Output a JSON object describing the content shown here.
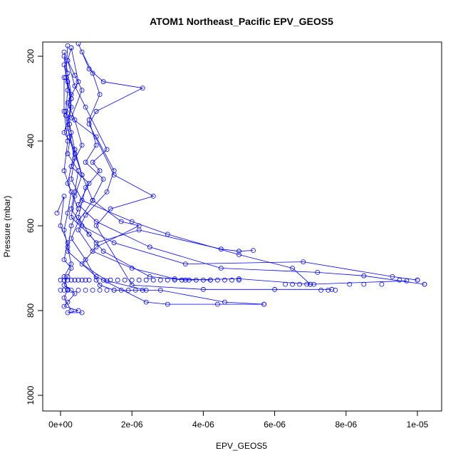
{
  "chart_data": {
    "type": "line",
    "title": "ATOM1 Northeast_Pacific EPV_GEOS5",
    "xlabel": "EPV_GEOS5",
    "ylabel": "Pressure (mbar)",
    "xlim": [
      -1e-07,
      1.06e-05
    ],
    "ylim": [
      1030,
      160
    ],
    "y_reversed": true,
    "x_ticks": [
      {
        "value": 0,
        "label": "0e+00"
      },
      {
        "value": 2e-06,
        "label": "2e-06"
      },
      {
        "value": 4e-06,
        "label": "4e-06"
      },
      {
        "value": 6e-06,
        "label": "6e-06"
      },
      {
        "value": 8e-06,
        "label": "8e-06"
      },
      {
        "value": 1e-05,
        "label": "1e-05"
      }
    ],
    "y_ticks": [
      {
        "value": 200,
        "label": "200"
      },
      {
        "value": 400,
        "label": "400"
      },
      {
        "value": 600,
        "label": "600"
      },
      {
        "value": 800,
        "label": "800"
      },
      {
        "value": 1000,
        "label": "1000"
      }
    ],
    "grid": false,
    "legend": "none",
    "series_color": "#0000ff",
    "marker": "open-circle",
    "series": [
      {
        "x": [
          2e-07,
          1.5e-07,
          3e-07,
          2.5e-07,
          4e-07,
          6e-07,
          4e-07,
          3e-07,
          8e-07,
          1e-06,
          2.2e-06,
          4.5e-06,
          5e-06,
          5.4e-06
        ],
        "y": [
          175,
          250,
          300,
          360,
          420,
          480,
          530,
          580,
          620,
          640,
          610,
          655,
          660,
          658
        ]
      },
      {
        "x": [
          1e-07,
          2e-07,
          1.5e-07,
          3e-07,
          2e-07,
          5e-07,
          4e-07,
          3e-07,
          6e-07,
          1.5e-06,
          3.5e-06,
          6.8e-06,
          9.3e-06,
          1e-05
        ],
        "y": [
          200,
          280,
          330,
          380,
          430,
          470,
          520,
          560,
          600,
          640,
          690,
          685,
          720,
          728
        ]
      },
      {
        "x": [
          3e-07,
          5e-07,
          2e-07,
          4e-07,
          6e-07,
          3e-07,
          8e-07,
          5e-07,
          1e-06,
          2.5e-06,
          4.5e-06,
          7.2e-06,
          8.5e-06,
          1.02e-05
        ],
        "y": [
          180,
          260,
          310,
          350,
          410,
          460,
          500,
          550,
          590,
          650,
          700,
          710,
          718,
          738
        ]
      },
      {
        "x": [
          1e-07,
          2e-07,
          3e-07,
          1.5e-07,
          2.5e-07,
          4e-07,
          3e-07,
          6e-07,
          2e-06,
          3e-06,
          5e-06,
          6.5e-06,
          7e-06,
          9.7e-06
        ],
        "y": [
          190,
          240,
          290,
          340,
          390,
          440,
          490,
          540,
          590,
          620,
          668,
          700,
          738,
          730
        ]
      },
      {
        "x": [
          5e-07,
          8e-07,
          1.2e-06,
          2.3e-06,
          1e-06,
          8e-07,
          1.5e-06,
          2.6e-06,
          1.4e-06,
          1e-06,
          2e-06,
          4e-06,
          6e-06,
          7.6e-06
        ],
        "y": [
          170,
          230,
          260,
          275,
          330,
          360,
          480,
          530,
          560,
          600,
          740,
          750,
          750,
          750
        ]
      },
      {
        "x": [
          2e-07,
          4e-07,
          7e-07,
          1.3e-06,
          9e-07,
          1.1e-06,
          7e-07,
          5e-07,
          8e-07,
          1.2e-06,
          2.5e-06,
          3.5e-06,
          5e-06,
          7e-06
        ],
        "y": [
          210,
          270,
          320,
          420,
          450,
          470,
          510,
          580,
          620,
          660,
          720,
          728,
          725,
          738
        ]
      },
      {
        "x": [
          1e-07,
          3e-07,
          2e-07,
          4e-07,
          6e-07,
          9e-07,
          5e-07,
          3e-07,
          7e-07,
          1.1e-06,
          1.5e-06,
          2.8e-06,
          4.6e-06,
          5.7e-06
        ],
        "y": [
          220,
          300,
          370,
          430,
          480,
          540,
          590,
          630,
          680,
          740,
          752,
          752,
          780,
          785
        ]
      },
      {
        "x": [
          -1e-07,
          1e-07,
          0.0,
          2e-07,
          1e-07,
          3e-07,
          2e-07,
          1e-07,
          4e-07,
          2e-07,
          1e-07,
          5e-07,
          2e-07,
          6e-07
        ],
        "y": [
          570,
          530,
          600,
          640,
          680,
          700,
          720,
          740,
          760,
          780,
          790,
          800,
          805,
          805
        ]
      },
      {
        "x": [
          2e-07,
          3e-07,
          1e-07,
          4e-07,
          2e-07,
          5e-07,
          3e-07,
          2e-07,
          1e-06,
          2.4e-06,
          3e-06,
          4.4e-06,
          5.7e-06
        ],
        "y": [
          260,
          320,
          380,
          420,
          500,
          560,
          600,
          660,
          720,
          780,
          785,
          785,
          785
        ]
      },
      {
        "x": [
          3e-07,
          2e-07,
          4e-07,
          6e-07,
          3e-07,
          1e-06,
          1.5e-06,
          1.3e-06,
          7e-07,
          5e-07,
          9e-07,
          2e-06,
          3.2e-06,
          4.2e-06
        ],
        "y": [
          180,
          210,
          245,
          280,
          345,
          390,
          470,
          520,
          575,
          610,
          660,
          700,
          725,
          728
        ]
      },
      {
        "x": [
          1e-07,
          1e-07,
          2e-07,
          1e-07,
          3e-07,
          2e-07,
          1e-07,
          2e-07,
          3e-07,
          1e-07,
          2e-07,
          1e-07,
          3e-07
        ],
        "y": [
          250,
          330,
          400,
          470,
          520,
          570,
          610,
          650,
          690,
          720,
          750,
          770,
          800
        ]
      },
      {
        "x": [
          6e-07,
          9e-07,
          1.1e-06,
          8e-07,
          1e-06,
          7e-07,
          1.2e-06,
          9e-07,
          1.7e-06,
          2.2e-06,
          1e-06,
          6e-07,
          1.3e-06,
          2.4e-06
        ],
        "y": [
          190,
          240,
          290,
          350,
          410,
          450,
          490,
          540,
          590,
          600,
          650,
          690,
          730,
          752
        ]
      }
    ],
    "marker_cluster_points": {
      "x": [
        0.0,
        1e-07,
        2e-07,
        3e-07,
        4e-07,
        5e-07,
        6e-07,
        7e-07,
        8e-07,
        1e-06,
        1.2e-06,
        1.4e-06,
        1.6e-06,
        1.8e-06,
        2e-06,
        2.2e-06,
        2.4e-06,
        2.6e-06,
        2.8e-06,
        3e-06,
        3.2e-06,
        3.4e-06,
        3.6e-06,
        3.8e-06,
        4e-06,
        4.2e-06,
        4.4e-06,
        4.6e-06,
        4.8e-06,
        5e-06,
        0.0,
        1e-07,
        2e-07,
        3e-07,
        5e-07,
        7e-07,
        9e-07,
        1.1e-06,
        1.3e-06,
        1.5e-06,
        1.7e-06,
        1.9e-06,
        2.1e-06,
        2.3e-06,
        6.3e-06,
        6.5e-06,
        6.7e-06,
        6.9e-06,
        7.1e-06,
        7.3e-06,
        7.5e-06,
        7.7e-06,
        8.1e-06,
        8.5e-06,
        9e-06,
        9.5e-06,
        1e-05,
        1.02e-05
      ],
      "y": [
        728,
        728,
        728,
        728,
        728,
        728,
        728,
        728,
        728,
        728,
        728,
        728,
        728,
        728,
        728,
        728,
        728,
        728,
        728,
        728,
        728,
        728,
        728,
        728,
        728,
        728,
        728,
        728,
        728,
        728,
        752,
        752,
        752,
        752,
        752,
        752,
        752,
        752,
        752,
        752,
        752,
        752,
        752,
        752,
        738,
        738,
        738,
        738,
        738,
        752,
        752,
        752,
        738,
        738,
        738,
        728,
        728,
        738
      ]
    }
  }
}
